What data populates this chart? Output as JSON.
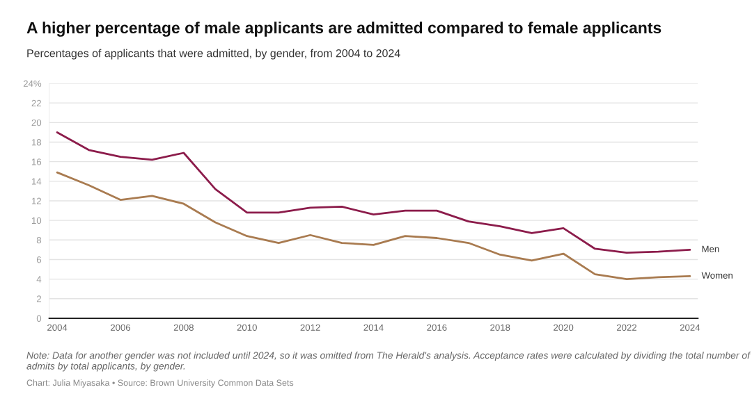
{
  "chart_data": {
    "type": "line",
    "title": "A higher percentage of male applicants are admitted compared to female applicants",
    "subtitle": "Percentages of applicants that were admitted, by gender, from 2004 to 2024",
    "x": [
      2004,
      2005,
      2006,
      2007,
      2008,
      2009,
      2010,
      2011,
      2012,
      2013,
      2014,
      2015,
      2016,
      2017,
      2018,
      2019,
      2020,
      2021,
      2022,
      2023,
      2024
    ],
    "series": [
      {
        "name": "Men",
        "color": "#8c1c4b",
        "values": [
          19.0,
          17.2,
          16.5,
          16.2,
          16.9,
          13.2,
          10.8,
          10.8,
          11.3,
          11.4,
          10.6,
          11.0,
          11.0,
          9.9,
          9.4,
          8.7,
          9.2,
          7.1,
          6.7,
          6.8,
          7.0
        ]
      },
      {
        "name": "Women",
        "color": "#a97b50",
        "values": [
          14.9,
          13.6,
          12.1,
          12.5,
          11.7,
          9.8,
          8.4,
          7.7,
          8.5,
          7.7,
          7.5,
          8.4,
          8.2,
          7.7,
          6.5,
          5.9,
          6.6,
          4.5,
          4.0,
          4.2,
          4.3
        ]
      }
    ],
    "xlim": [
      2003.75,
      2024.25
    ],
    "xticks": [
      2004,
      2006,
      2008,
      2010,
      2012,
      2014,
      2016,
      2018,
      2020,
      2022,
      2024
    ],
    "ylim": [
      0,
      24
    ],
    "yticks": [
      0,
      2,
      4,
      6,
      8,
      10,
      12,
      14,
      16,
      18,
      20,
      22,
      {
        "value": 24,
        "label": "24%"
      }
    ],
    "grid": "y",
    "legend": false,
    "line_style": "solid",
    "annotations": [
      "Note: Data for another gender was not included until 2024, so it was omitted from The Herald's analysis. Acceptance rates were calculated by dividing the total number of admits by total applicants, by gender.",
      "Chart: Julia Miyasaka • Source: Brown University Common Data Sets"
    ]
  }
}
